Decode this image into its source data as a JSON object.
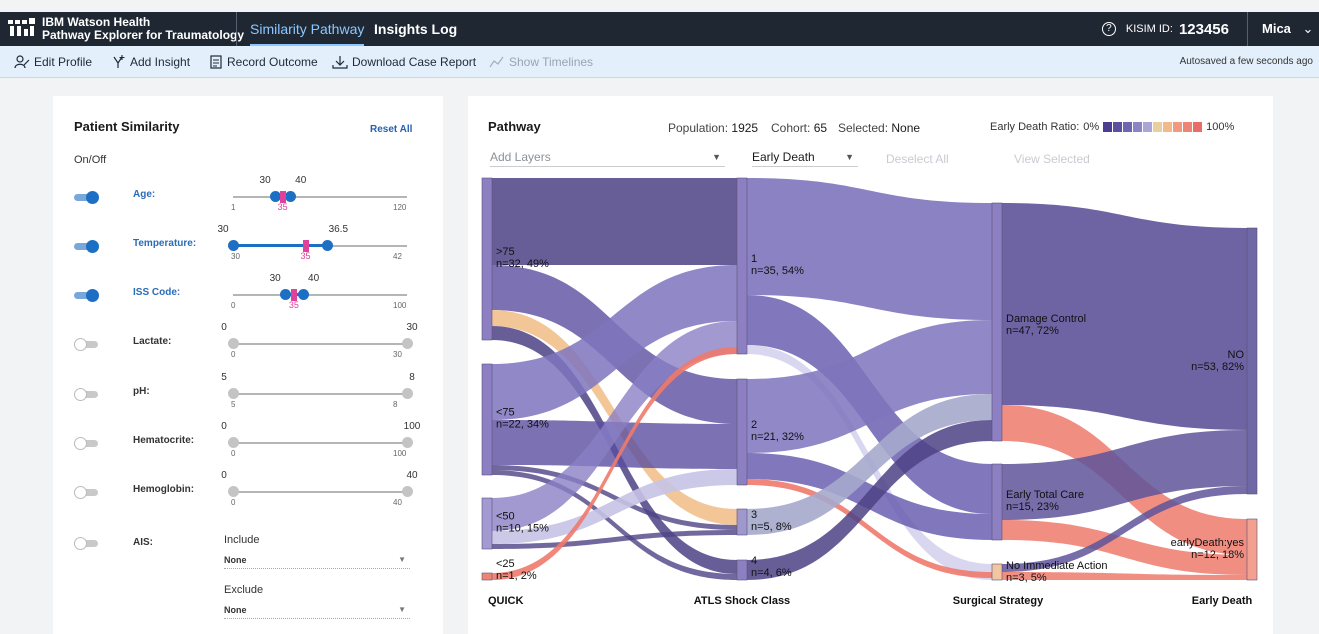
{
  "app": {
    "brand_line1": "IBM Watson Health",
    "brand_line2": "Pathway Explorer for Traumatology",
    "tabs": [
      {
        "label": "Similarity Pathway",
        "active": true
      },
      {
        "label": "Insights Log",
        "active": false
      }
    ],
    "kisim_label": "KISIM ID:",
    "kisim_value": "123456",
    "user": "Mica"
  },
  "toolbar": {
    "items": [
      {
        "label": "Edit Profile",
        "icon": "edit-profile-icon",
        "enabled": true
      },
      {
        "label": "Add Insight",
        "icon": "add-insight-icon",
        "enabled": true
      },
      {
        "label": "Record Outcome",
        "icon": "document-icon",
        "enabled": true
      },
      {
        "label": "Download Case Report",
        "icon": "download-icon",
        "enabled": true
      },
      {
        "label": "Show Timelines",
        "icon": "timeline-icon",
        "enabled": false
      }
    ],
    "autosave": "Autosaved a few seconds ago"
  },
  "similarity": {
    "title": "Patient Similarity",
    "reset": "Reset All",
    "onoff": "On/Off",
    "filters": [
      {
        "label": "Age:",
        "on": true,
        "min": "1",
        "max": "120",
        "low": "30",
        "high": "40",
        "value": "35",
        "lo_frac": 0.242,
        "hi_frac": 0.326,
        "val_frac": 0.285
      },
      {
        "label": "Temperature:",
        "on": true,
        "min": "30",
        "max": "42",
        "low": "30",
        "high": "36.5",
        "value": "35",
        "lo_frac": 0.0,
        "hi_frac": 0.542,
        "val_frac": 0.417
      },
      {
        "label": "ISS Code:",
        "on": true,
        "min": "0",
        "max": "100",
        "low": "30",
        "high": "40",
        "value": "35",
        "lo_frac": 0.3,
        "hi_frac": 0.4,
        "val_frac": 0.35
      },
      {
        "label": "Lactate:",
        "on": false,
        "min": "0",
        "max": "30",
        "low": "0",
        "high": "30"
      },
      {
        "label": "pH:",
        "on": false,
        "min": "5",
        "max": "8",
        "low": "5",
        "high": "8"
      },
      {
        "label": "Hematocrite:",
        "on": false,
        "min": "0",
        "max": "100",
        "low": "0",
        "high": "100"
      },
      {
        "label": "Hemoglobin:",
        "on": false,
        "min": "0",
        "max": "40",
        "low": "0",
        "high": "40"
      }
    ],
    "ais": {
      "label": "AIS:",
      "include_label": "Include",
      "include_value": "None",
      "exclude_label": "Exclude",
      "exclude_value": "None"
    }
  },
  "pathway": {
    "title": "Pathway",
    "population_label": "Population:",
    "population_value": "1925",
    "cohort_label": "Cohort:",
    "cohort_value": "65",
    "selected_label": "Selected:",
    "selected_value": "None",
    "ratio_label": "Early Death Ratio:",
    "ratio_min": "0%",
    "ratio_max": "100%",
    "ratio_colors": [
      "#4b3d8f",
      "#5b4fa0",
      "#6e66b1",
      "#8a85c4",
      "#a9a6d6",
      "#e8cfa0",
      "#f2b98a",
      "#f19a80",
      "#ee8474",
      "#e86d66"
    ],
    "add_layers": "Add Layers",
    "outcome_select": "Early Death",
    "deselect_all": "Deselect All",
    "view_selected": "View Selected",
    "axes": [
      "QUICK",
      "ATLS Shock Class",
      "Surgical Strategy",
      "Early Death"
    ],
    "nodes": [
      {
        "name": ">75",
        "stat": "n=32, 49%",
        "col": 0,
        "y0": 178,
        "y1": 340,
        "color": "#8c7fc2"
      },
      {
        "name": "<75",
        "stat": "n=22, 34%",
        "col": 0,
        "y0": 364,
        "y1": 475,
        "color": "#8c7fc2"
      },
      {
        "name": "<50",
        "stat": "n=10, 15%",
        "col": 0,
        "y0": 498,
        "y1": 549,
        "color": "#a29ad0"
      },
      {
        "name": "<25",
        "stat": "n=1, 2%",
        "col": 0,
        "y0": 573,
        "y1": 580,
        "color": "#ee8474"
      },
      {
        "name": "1",
        "stat": "n=35, 54%",
        "col": 1,
        "y0": 178,
        "y1": 354,
        "color": "#8c7fc2"
      },
      {
        "name": "2",
        "stat": "n=21, 32%",
        "col": 1,
        "y0": 379,
        "y1": 485,
        "color": "#8c7fc2"
      },
      {
        "name": "3",
        "stat": "n=5, 8%",
        "col": 1,
        "y0": 509,
        "y1": 535,
        "color": "#9f98cc"
      },
      {
        "name": "4",
        "stat": "n=4, 6%",
        "col": 1,
        "y0": 560,
        "y1": 580,
        "color": "#8c7fc2"
      },
      {
        "name": "Damage Control",
        "stat": "n=47, 72%",
        "col": 2,
        "y0": 203,
        "y1": 441,
        "color": "#8c7fc2"
      },
      {
        "name": "Early Total Care",
        "stat": "n=15, 23%",
        "col": 2,
        "y0": 464,
        "y1": 540,
        "color": "#8c7fc2"
      },
      {
        "name": "No Immediate Action",
        "stat": "n=3, 5%",
        "col": 2,
        "y0": 564,
        "y1": 580,
        "color": "#f2c6a0"
      },
      {
        "name": "NO",
        "stat": "n=53, 82%",
        "col": 3,
        "y0": 228,
        "y1": 494,
        "color": "#6f68a6"
      },
      {
        "name": "earlyDeath:yes",
        "stat": "n=12, 18%",
        "col": 3,
        "y0": 519,
        "y1": 580,
        "color": "#f2a090"
      }
    ],
    "links": [
      {
        "c": 0,
        "s0": 178,
        "s1": 265,
        "t0": 178,
        "t1": 265,
        "color": "#4e4285",
        "op": 0.85
      },
      {
        "c": 0,
        "s0": 265,
        "s1": 310,
        "t0": 379,
        "t1": 424,
        "color": "#5a4da0",
        "op": 0.8
      },
      {
        "c": 0,
        "s0": 310,
        "s1": 326,
        "t0": 509,
        "t1": 525,
        "color": "#f2c08c",
        "op": 0.9
      },
      {
        "c": 0,
        "s0": 326,
        "s1": 340,
        "t0": 560,
        "t1": 574,
        "color": "#4e4285",
        "op": 0.85
      },
      {
        "c": 0,
        "s0": 364,
        "s1": 420,
        "t0": 265,
        "t1": 321,
        "color": "#7e74bd",
        "op": 0.85
      },
      {
        "c": 0,
        "s0": 420,
        "s1": 465,
        "t0": 424,
        "t1": 469,
        "color": "#5a4da0",
        "op": 0.8
      },
      {
        "c": 0,
        "s0": 465,
        "s1": 470,
        "t0": 525,
        "t1": 530,
        "color": "#4e4285",
        "op": 0.8
      },
      {
        "c": 0,
        "s0": 470,
        "s1": 475,
        "t0": 574,
        "t1": 580,
        "color": "#4e4285",
        "op": 0.8
      },
      {
        "c": 0,
        "s0": 498,
        "s1": 531,
        "t0": 321,
        "t1": 354,
        "color": "#8a80c4",
        "op": 0.8
      },
      {
        "c": 0,
        "s0": 531,
        "s1": 544,
        "t0": 469,
        "t1": 485,
        "color": "#c7c3e6",
        "op": 0.9
      },
      {
        "c": 0,
        "s0": 544,
        "s1": 549,
        "t0": 530,
        "t1": 535,
        "color": "#4e4285",
        "op": 0.8
      },
      {
        "c": 0,
        "s0": 573,
        "s1": 580,
        "t0": 347,
        "t1": 354,
        "color": "#ee7a6c",
        "op": 0.9
      },
      {
        "c": 1,
        "s0": 178,
        "s1": 295,
        "t0": 203,
        "t1": 320,
        "color": "#7e74bd",
        "op": 0.9
      },
      {
        "c": 1,
        "s0": 295,
        "s1": 345,
        "t0": 464,
        "t1": 514,
        "color": "#6a5fb0",
        "op": 0.85
      },
      {
        "c": 1,
        "s0": 345,
        "s1": 354,
        "t0": 564,
        "t1": 580,
        "color": "#d7d4ee",
        "op": 0.95
      },
      {
        "c": 1,
        "s0": 379,
        "s1": 453,
        "t0": 320,
        "t1": 394,
        "color": "#7e74bd",
        "op": 0.85
      },
      {
        "c": 1,
        "s0": 453,
        "s1": 479,
        "t0": 514,
        "t1": 540,
        "color": "#6a5fb0",
        "op": 0.85
      },
      {
        "c": 1,
        "s0": 479,
        "s1": 485,
        "t0": 572,
        "t1": 578,
        "color": "#ee7a6c",
        "op": 0.9
      },
      {
        "c": 1,
        "s0": 509,
        "s1": 535,
        "t0": 394,
        "t1": 420,
        "color": "#a6a8cc",
        "op": 0.9
      },
      {
        "c": 1,
        "s0": 560,
        "s1": 580,
        "t0": 420,
        "t1": 441,
        "color": "#4e4285",
        "op": 0.85
      },
      {
        "c": 2,
        "s0": 203,
        "s1": 405,
        "t0": 228,
        "t1": 430,
        "color": "#5e539a",
        "op": 0.9
      },
      {
        "c": 2,
        "s0": 405,
        "s1": 441,
        "t0": 519,
        "t1": 555,
        "color": "#ee7a6c",
        "op": 0.85
      },
      {
        "c": 2,
        "s0": 464,
        "s1": 520,
        "t0": 430,
        "t1": 486,
        "color": "#5e539a",
        "op": 0.85
      },
      {
        "c": 2,
        "s0": 520,
        "s1": 540,
        "t0": 555,
        "t1": 575,
        "color": "#ee7a6c",
        "op": 0.85
      },
      {
        "c": 2,
        "s0": 564,
        "s1": 572,
        "t0": 486,
        "t1": 494,
        "color": "#5e539a",
        "op": 0.85
      },
      {
        "c": 2,
        "s0": 572,
        "s1": 580,
        "t0": 575,
        "t1": 580,
        "color": "#ee7a6c",
        "op": 0.85
      }
    ]
  }
}
